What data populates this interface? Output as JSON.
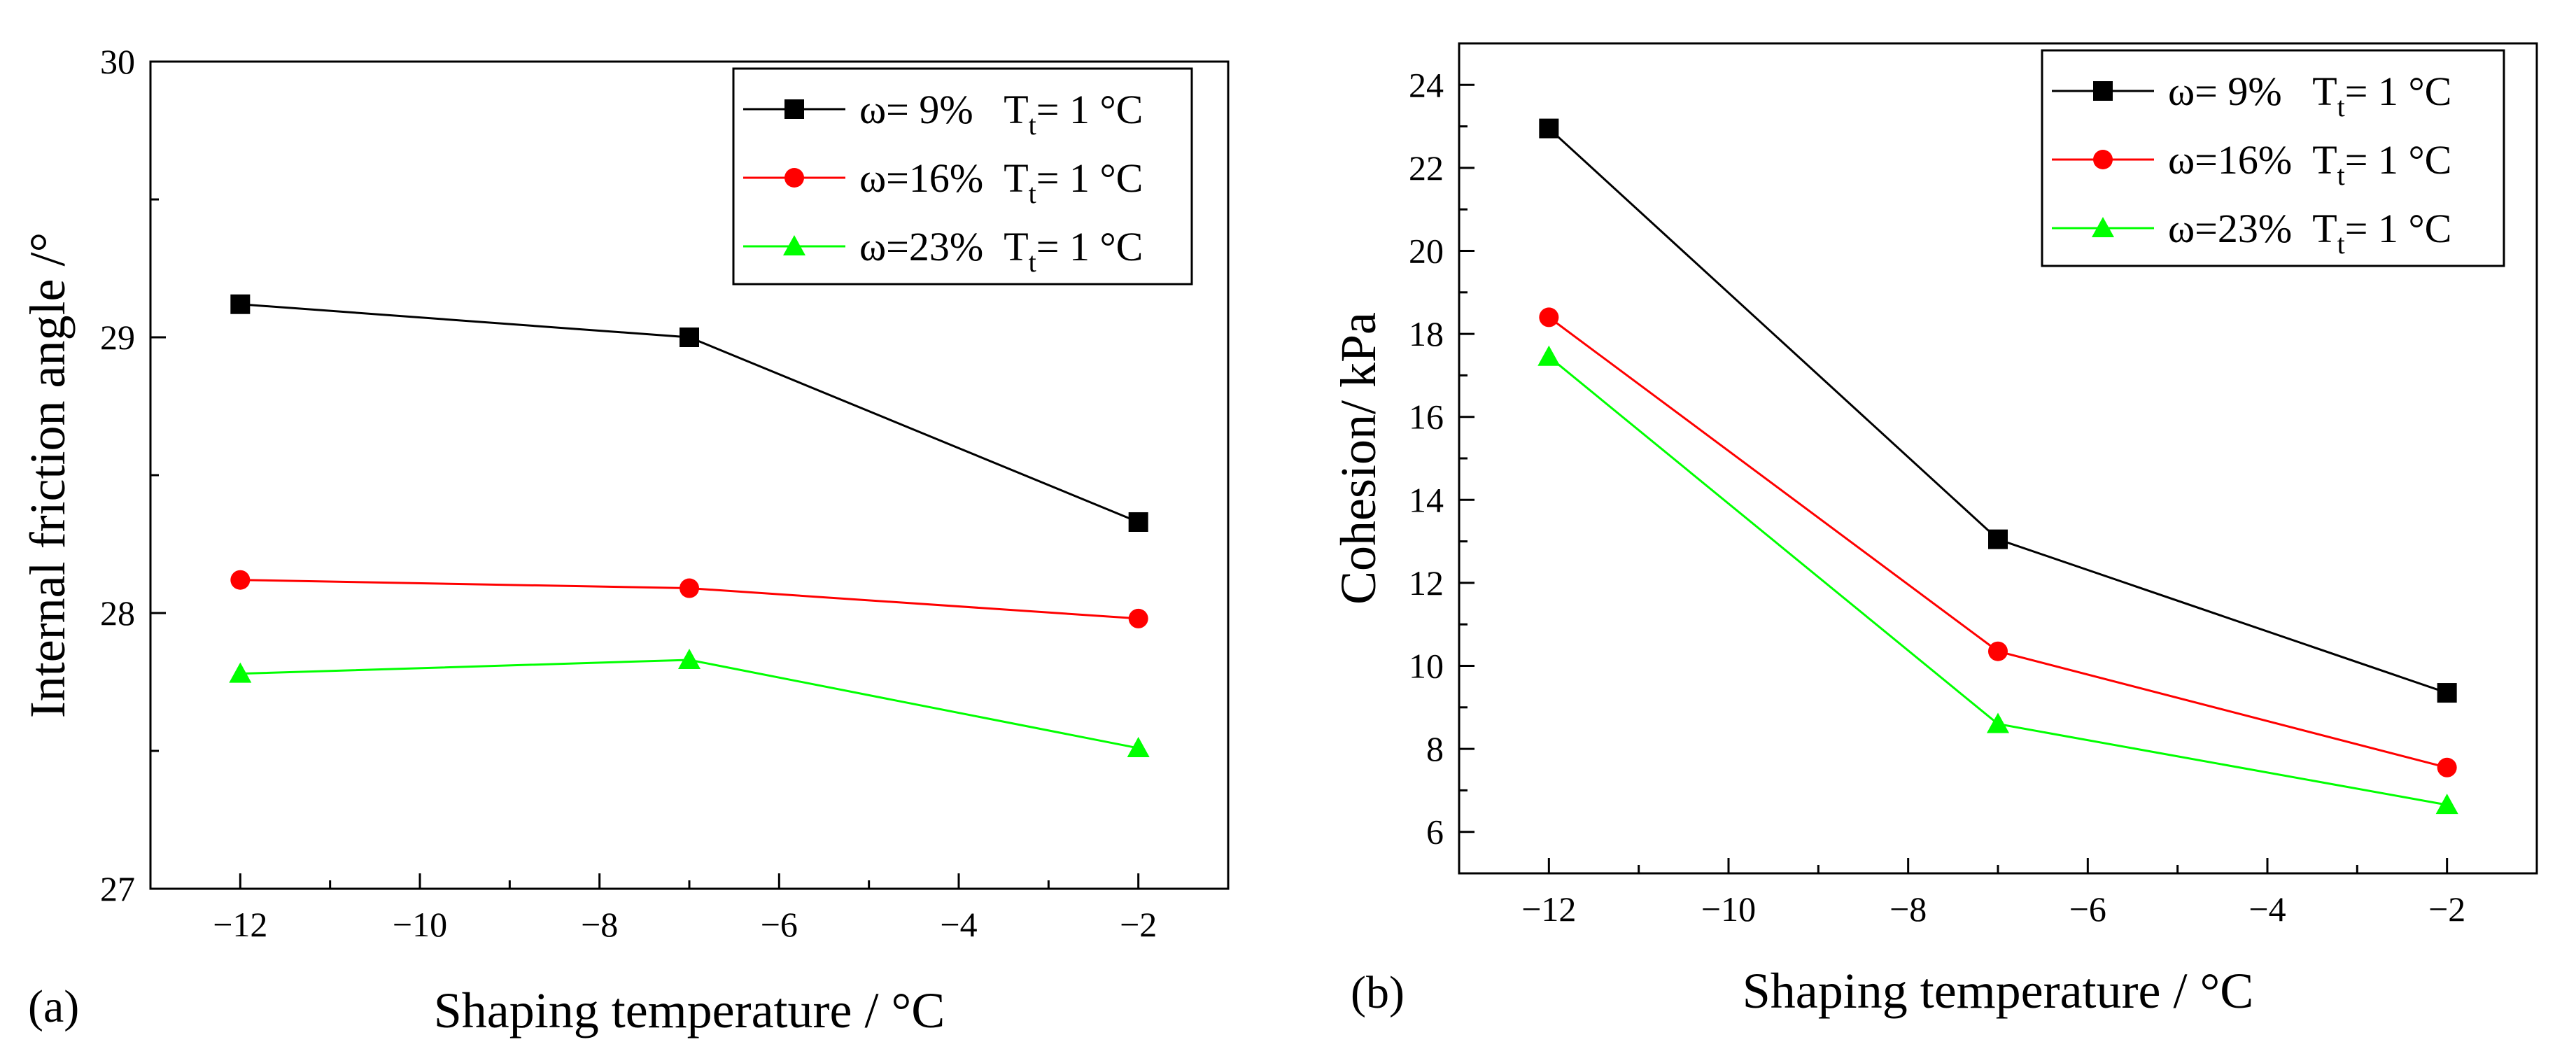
{
  "chart_data": [
    {
      "type": "line",
      "panel_label": "(a)",
      "xlabel": "Shaping temperature / °C",
      "ylabel": "Internal friction angle /°",
      "xlim": [
        -13,
        -1
      ],
      "ylim": [
        27,
        30
      ],
      "xticks": [
        -12,
        -10,
        -8,
        -6,
        -4,
        -2
      ],
      "xtick_labels": [
        "−12",
        "−10",
        "−8",
        "−6",
        "−4",
        "−2"
      ],
      "yticks": [
        27,
        28,
        29,
        30
      ],
      "ytick_labels": [
        "27",
        "28",
        "29",
        "30"
      ],
      "x": [
        -12,
        -7,
        -2
      ],
      "legend_position": "top-right",
      "grid": false,
      "series": [
        {
          "name": "ω= 9%   T",
          "name_sub": "t",
          "name_suffix": "= 1 °C",
          "color": "#000000",
          "marker": "square",
          "values": [
            29.12,
            29.0,
            28.33
          ]
        },
        {
          "name": "ω=16%  T",
          "name_sub": "t",
          "name_suffix": "= 1 °C",
          "color": "#ff0000",
          "marker": "circle",
          "values": [
            28.12,
            28.09,
            27.98
          ]
        },
        {
          "name": "ω=23%  T",
          "name_sub": "t",
          "name_suffix": "= 1 °C",
          "color": "#00ff00",
          "marker": "triangle",
          "values": [
            27.78,
            27.83,
            27.51
          ]
        }
      ]
    },
    {
      "type": "line",
      "panel_label": "(b)",
      "xlabel": "Shaping temperature / °C",
      "ylabel": "Cohesion/ kPa",
      "xlim": [
        -13,
        -1
      ],
      "ylim": [
        5,
        25
      ],
      "xticks": [
        -12,
        -10,
        -8,
        -6,
        -4,
        -2
      ],
      "xtick_labels": [
        "−12",
        "−10",
        "−8",
        "−6",
        "−4",
        "−2"
      ],
      "yticks": [
        6,
        8,
        10,
        12,
        14,
        16,
        18,
        20,
        22,
        24
      ],
      "ytick_labels": [
        "6",
        "8",
        "10",
        "12",
        "14",
        "16",
        "18",
        "20",
        "22",
        "24"
      ],
      "x": [
        -12,
        -7,
        -2
      ],
      "legend_position": "top-right",
      "grid": false,
      "series": [
        {
          "name": "ω= 9%   T",
          "name_sub": "t",
          "name_suffix": "= 1 °C",
          "color": "#000000",
          "marker": "square",
          "values": [
            22.95,
            13.05,
            9.35
          ]
        },
        {
          "name": "ω=16%  T",
          "name_sub": "t",
          "name_suffix": "= 1 °C",
          "color": "#ff0000",
          "marker": "circle",
          "values": [
            18.4,
            10.35,
            7.55
          ]
        },
        {
          "name": "ω=23%  T",
          "name_sub": "t",
          "name_suffix": "= 1 °C",
          "color": "#00ff00",
          "marker": "triangle",
          "values": [
            17.45,
            8.6,
            6.65
          ]
        }
      ]
    }
  ]
}
